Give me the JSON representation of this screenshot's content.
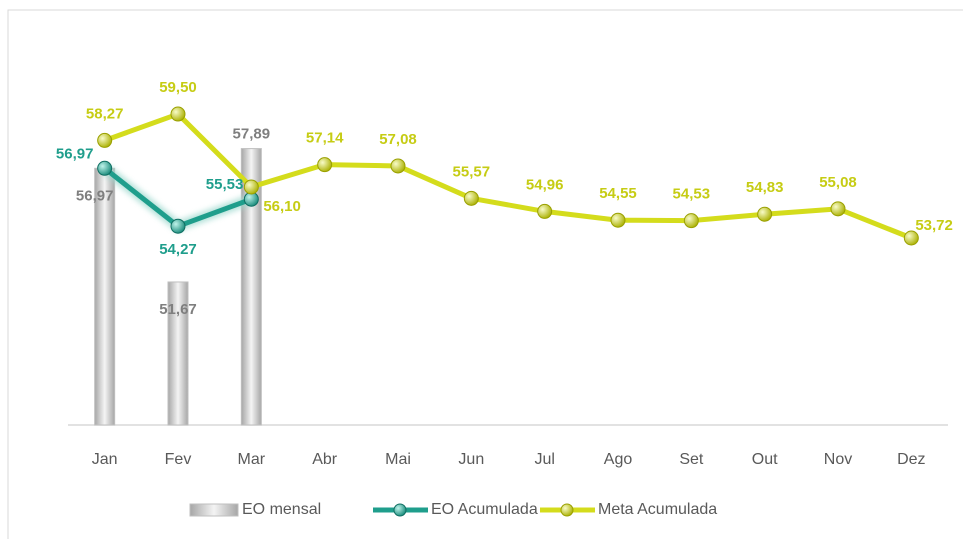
{
  "chart_data": {
    "type": "line",
    "categories": [
      "Jan",
      "Fev",
      "Mar",
      "Abr",
      "Mai",
      "Jun",
      "Jul",
      "Ago",
      "Set",
      "Out",
      "Nov",
      "Dez"
    ],
    "series": [
      {
        "name": "EO mensal",
        "type": "bar",
        "color": "#d9d9d9",
        "values": [
          56.97,
          51.67,
          57.89,
          null,
          null,
          null,
          null,
          null,
          null,
          null,
          null,
          null
        ],
        "value_labels": [
          "56,97",
          "51,67",
          "57,89",
          null,
          null,
          null,
          null,
          null,
          null,
          null,
          null,
          null
        ]
      },
      {
        "name": "EO Acumulada",
        "type": "line",
        "color": "#1f9e8c",
        "values": [
          56.97,
          54.27,
          55.53,
          null,
          null,
          null,
          null,
          null,
          null,
          null,
          null,
          null
        ],
        "value_labels": [
          "56,97",
          "54,27",
          "55,53",
          null,
          null,
          null,
          null,
          null,
          null,
          null,
          null,
          null
        ]
      },
      {
        "name": "Meta Acumulada",
        "type": "line",
        "color": "#d4dc1c",
        "values": [
          58.27,
          59.5,
          56.1,
          57.14,
          57.08,
          55.57,
          54.96,
          54.55,
          54.53,
          54.83,
          55.08,
          53.72
        ],
        "value_labels": [
          "58,27",
          "59,50",
          "56,10",
          "57,14",
          "57,08",
          "55,57",
          "54,96",
          "54,55",
          "54,53",
          "54,83",
          "55,08",
          "53,72"
        ]
      }
    ],
    "ylim": [
      45,
      63
    ],
    "legend": "bottom"
  }
}
